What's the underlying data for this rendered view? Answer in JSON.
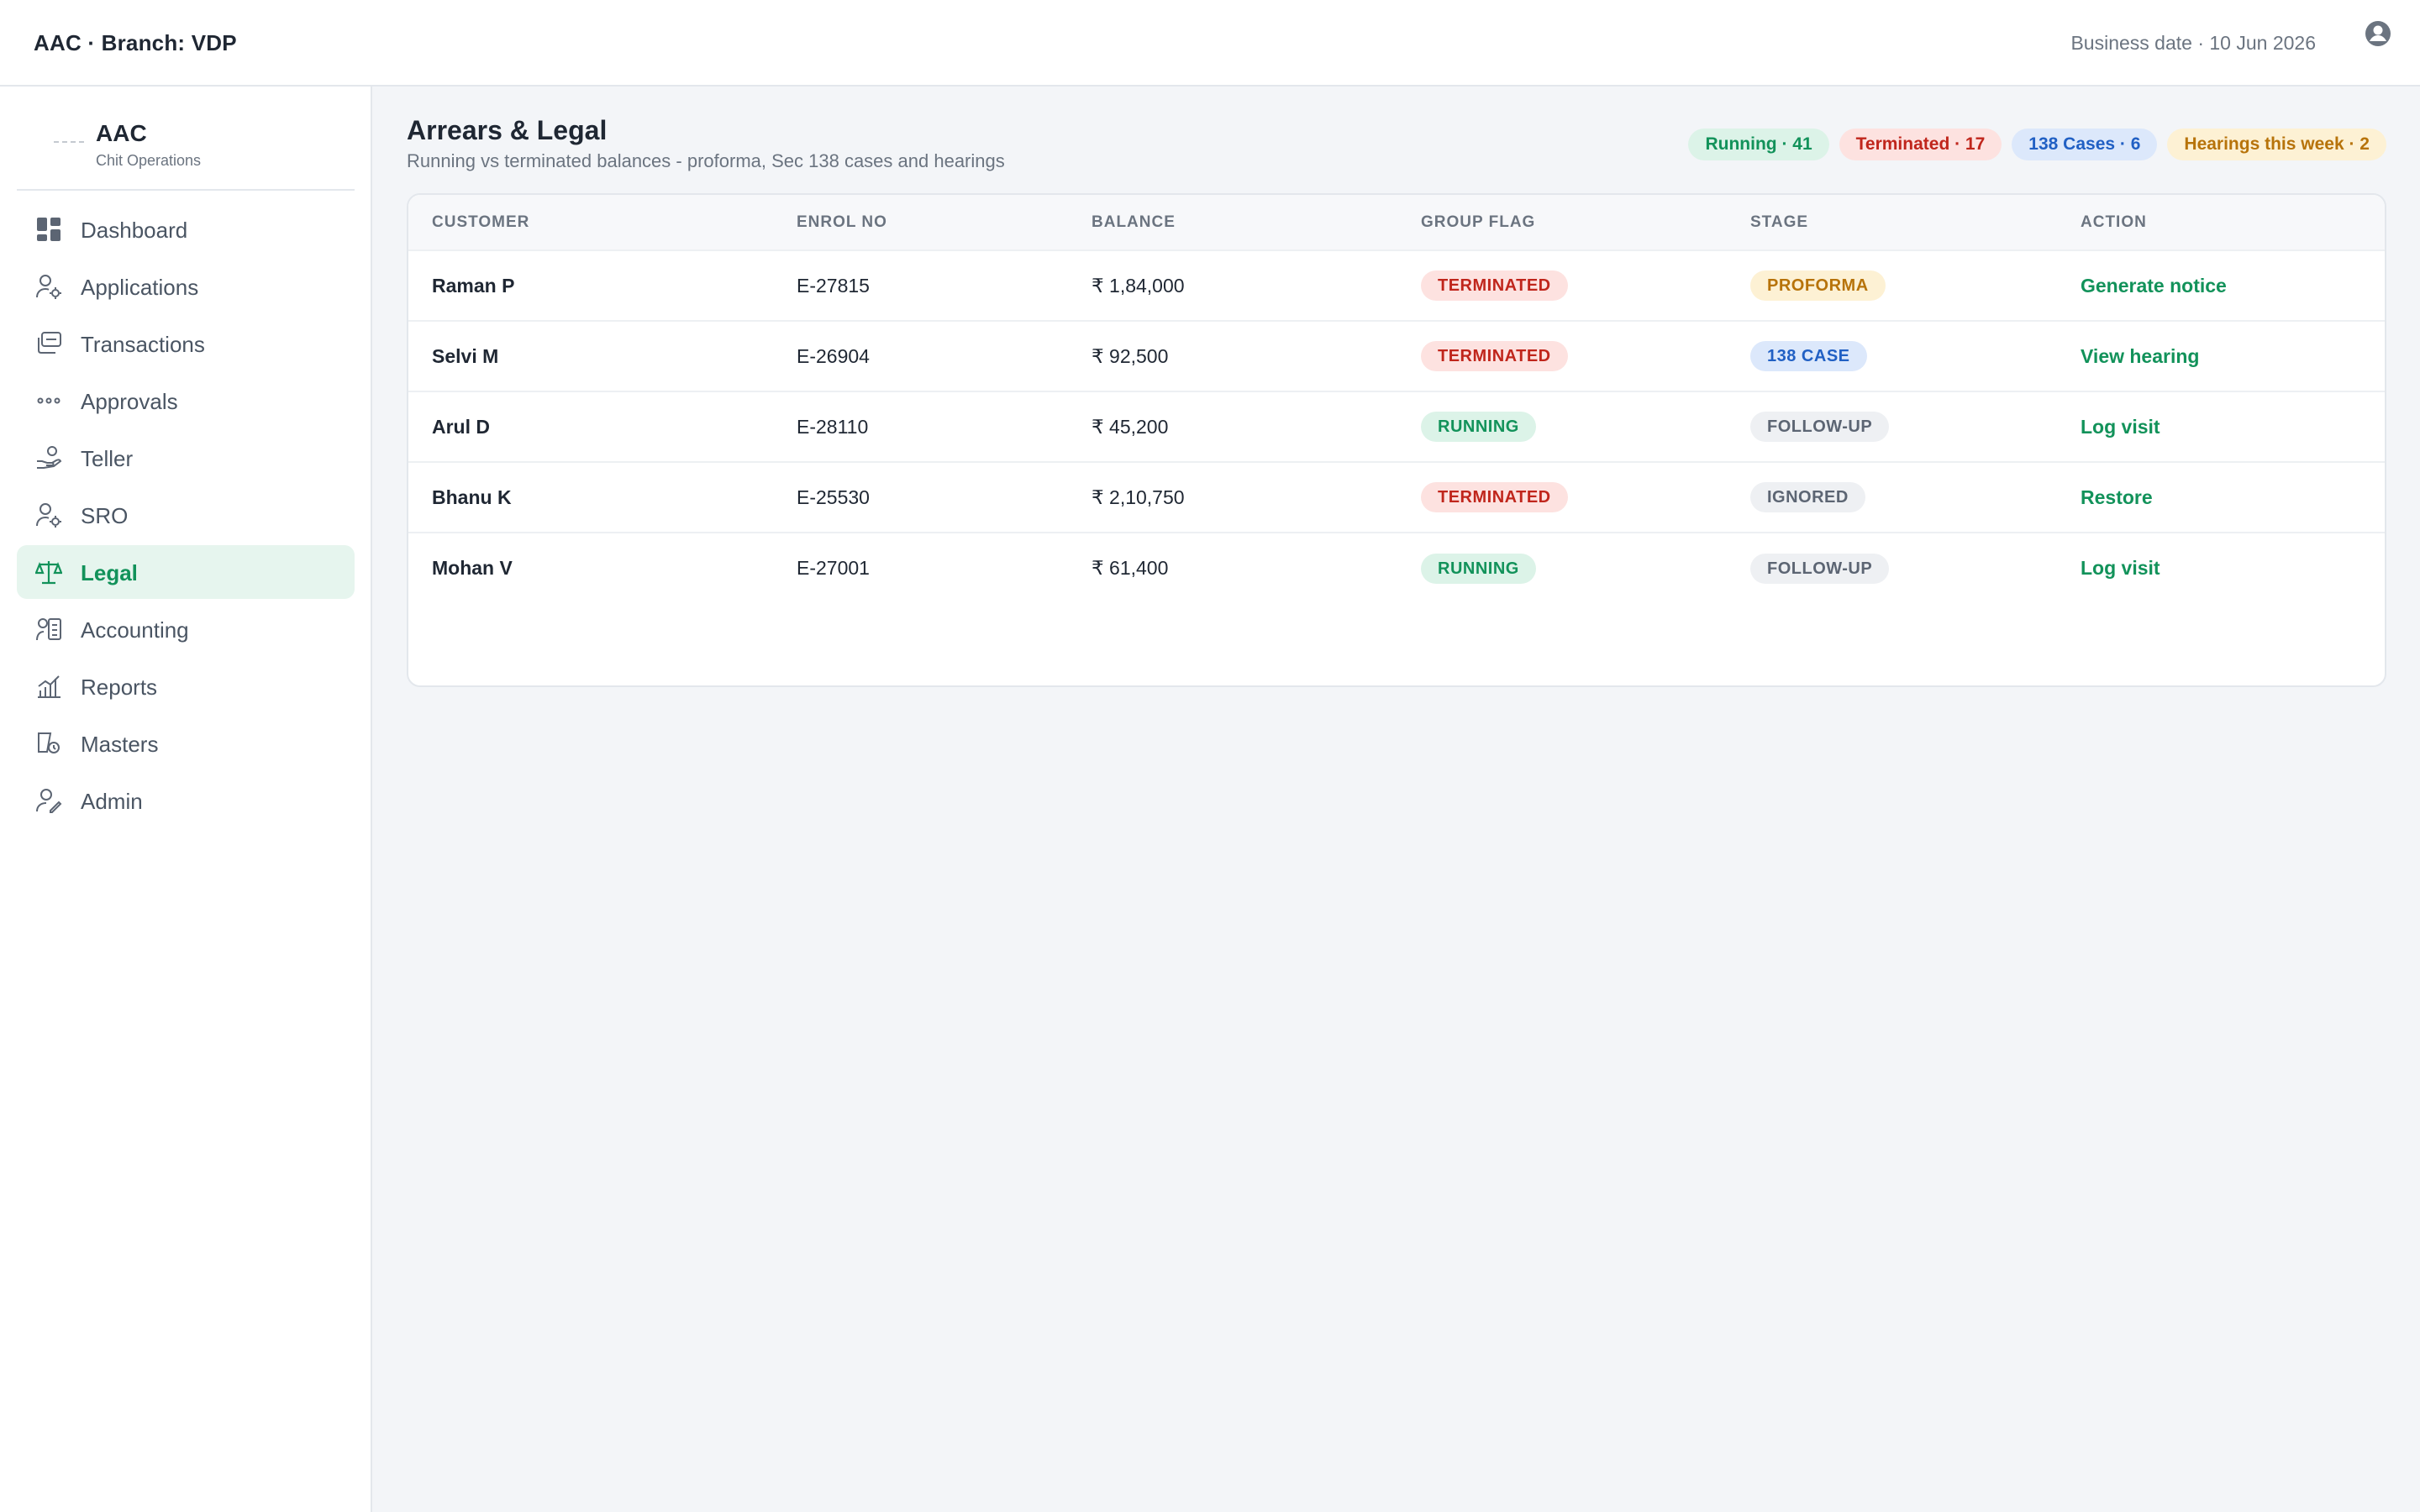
{
  "topbar": {
    "title": "AAC · Branch: VDP",
    "business_date": "Business date · 10 Jun 2026",
    "user_icon": "user-circle-icon"
  },
  "brand": {
    "name": "AAC",
    "subtitle": "Chit Operations"
  },
  "sidebar": {
    "items": [
      {
        "label": "Dashboard",
        "icon": "dashboard-grid-icon",
        "active": false
      },
      {
        "label": "Applications",
        "icon": "user-gear-icon",
        "active": false
      },
      {
        "label": "Transactions",
        "icon": "transactions-icon",
        "active": false
      },
      {
        "label": "Approvals",
        "icon": "dots-icon",
        "active": false
      },
      {
        "label": "Teller",
        "icon": "hand-coin-icon",
        "active": false
      },
      {
        "label": "SRO",
        "icon": "user-gear-icon",
        "active": false
      },
      {
        "label": "Legal",
        "icon": "scale-icon",
        "active": true
      },
      {
        "label": "Accounting",
        "icon": "ledger-icon",
        "active": false
      },
      {
        "label": "Reports",
        "icon": "bar-chart-icon",
        "active": false
      },
      {
        "label": "Masters",
        "icon": "masters-icon",
        "active": false
      },
      {
        "label": "Admin",
        "icon": "user-admin-icon",
        "active": false
      }
    ]
  },
  "page": {
    "title": "Arrears & Legal",
    "subtitle": "Running vs terminated balances - proforma, Sec 138 cases and hearings"
  },
  "chips": [
    {
      "label": "Running · 41",
      "bg": "#dcf3e8",
      "fg": "#12925a"
    },
    {
      "label": "Terminated · 17",
      "bg": "#fde2e0",
      "fg": "#c0261c"
    },
    {
      "label": "138 Cases · 6",
      "bg": "#dce8fb",
      "fg": "#2160c4"
    },
    {
      "label": "Hearings this week · 2",
      "bg": "#fdf1d4",
      "fg": "#b7730a"
    }
  ],
  "table": {
    "headers": [
      "CUSTOMER",
      "ENROL NO",
      "BALANCE",
      "GROUP FLAG",
      "STAGE",
      "ACTION"
    ],
    "rows": [
      {
        "customer": "Raman P",
        "enrol": "E-27815",
        "balance": "₹ 1,84,000",
        "flag": "TERMINATED",
        "stage": "PROFORMA",
        "action": "Generate notice"
      },
      {
        "customer": "Selvi M",
        "enrol": "E-26904",
        "balance": "₹ 92,500",
        "flag": "TERMINATED",
        "stage": "138 CASE",
        "action": "View hearing"
      },
      {
        "customer": "Arul D",
        "enrol": "E-28110",
        "balance": "₹ 45,200",
        "flag": "RUNNING",
        "stage": "FOLLOW-UP",
        "action": "Log visit"
      },
      {
        "customer": "Bhanu K",
        "enrol": "E-25530",
        "balance": "₹ 2,10,750",
        "flag": "TERMINATED",
        "stage": "IGNORED",
        "action": "Restore"
      },
      {
        "customer": "Mohan V",
        "enrol": "E-27001",
        "balance": "₹ 61,400",
        "flag": "RUNNING",
        "stage": "FOLLOW-UP",
        "action": "Log visit"
      }
    ]
  },
  "colors": {
    "accent": "#12925a",
    "terminated_bg": "#fde2e0",
    "terminated_fg": "#c0261c",
    "running_bg": "#dcf3e8",
    "running_fg": "#12925a",
    "proforma_bg": "#fdf1d4",
    "proforma_fg": "#b7730a",
    "case_bg": "#dce8fb",
    "case_fg": "#2160c4",
    "neutral_bg": "#eef0f3",
    "neutral_fg": "#5c6573"
  }
}
